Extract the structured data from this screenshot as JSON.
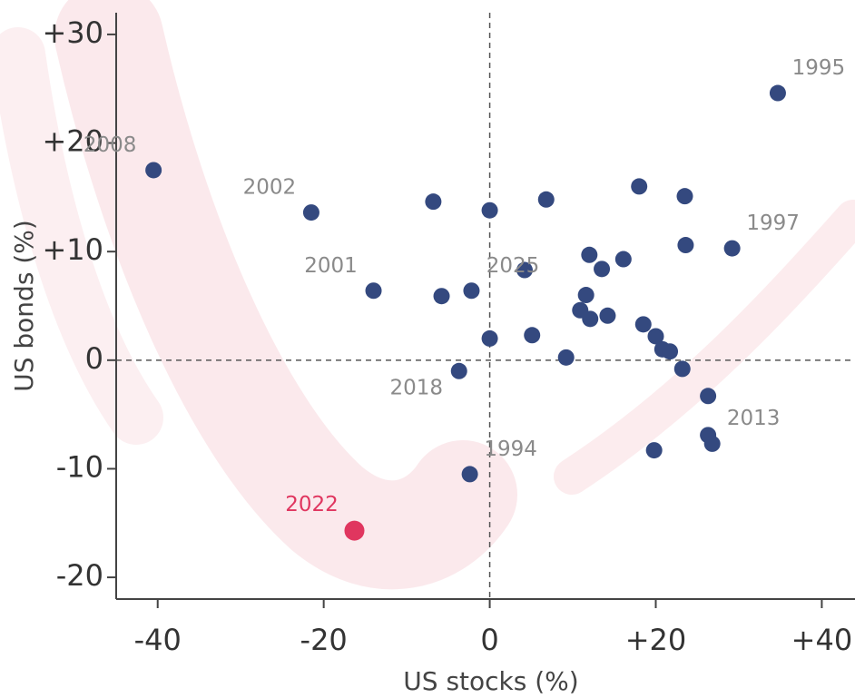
{
  "chart_data": {
    "type": "scatter",
    "x_label": "US stocks (%)",
    "y_label": "US bonds (%)",
    "xlim": [
      -45,
      44
    ],
    "ylim": [
      -22,
      32
    ],
    "xticks": [
      -40,
      -20,
      0,
      {
        "value": 20,
        "label": "+20"
      },
      {
        "value": 40,
        "label": "+40"
      }
    ],
    "yticks": [
      {
        "value": 30,
        "label": "+30"
      },
      {
        "value": 20,
        "label": "+20"
      },
      {
        "value": 10,
        "label": "+10"
      },
      0,
      -10,
      -20
    ],
    "zero_lines": true,
    "series": [
      {
        "color": "#34497f",
        "label_color": "#8a8a8a",
        "x": [
          34.7,
          -40.5,
          -21.5,
          29.2,
          4.2,
          -14.0,
          -3.7,
          26.3,
          -2.4,
          -6.8,
          0,
          6.8,
          18.0,
          23.5,
          23.6,
          12.0,
          16.1,
          13.5,
          -5.8,
          -2.2,
          11.6,
          10.9,
          12.1,
          14.2,
          0,
          5.1,
          9.2,
          18.5,
          20.0,
          20.8,
          21.7,
          23.2,
          26.3,
          26.8,
          19.8
        ],
        "values": [
          24.6,
          17.5,
          13.6,
          10.3,
          8.3,
          6.4,
          -1.0,
          -6.9,
          -10.5,
          14.6,
          13.8,
          14.8,
          16.0,
          15.1,
          10.6,
          9.7,
          9.3,
          8.4,
          5.9,
          6.4,
          6.0,
          4.6,
          3.8,
          4.1,
          2.0,
          2.3,
          0.25,
          3.3,
          2.2,
          1.0,
          0.8,
          -0.8,
          -3.3,
          -7.7,
          -8.3
        ],
        "labels": [
          "1995",
          "2008",
          "2002",
          "1997",
          "2025",
          "2001",
          "2018",
          "2013",
          "1994",
          null,
          null,
          null,
          null,
          null,
          null,
          null,
          null,
          null,
          null,
          null,
          null,
          null,
          null,
          null,
          null,
          null,
          null,
          null,
          null,
          null,
          null,
          null,
          null,
          null,
          null
        ]
      },
      {
        "color": "#e0365f",
        "label_color": "#e0365f",
        "x": [
          -16.3
        ],
        "values": [
          -15.7
        ],
        "labels": [
          "2022"
        ]
      }
    ]
  }
}
